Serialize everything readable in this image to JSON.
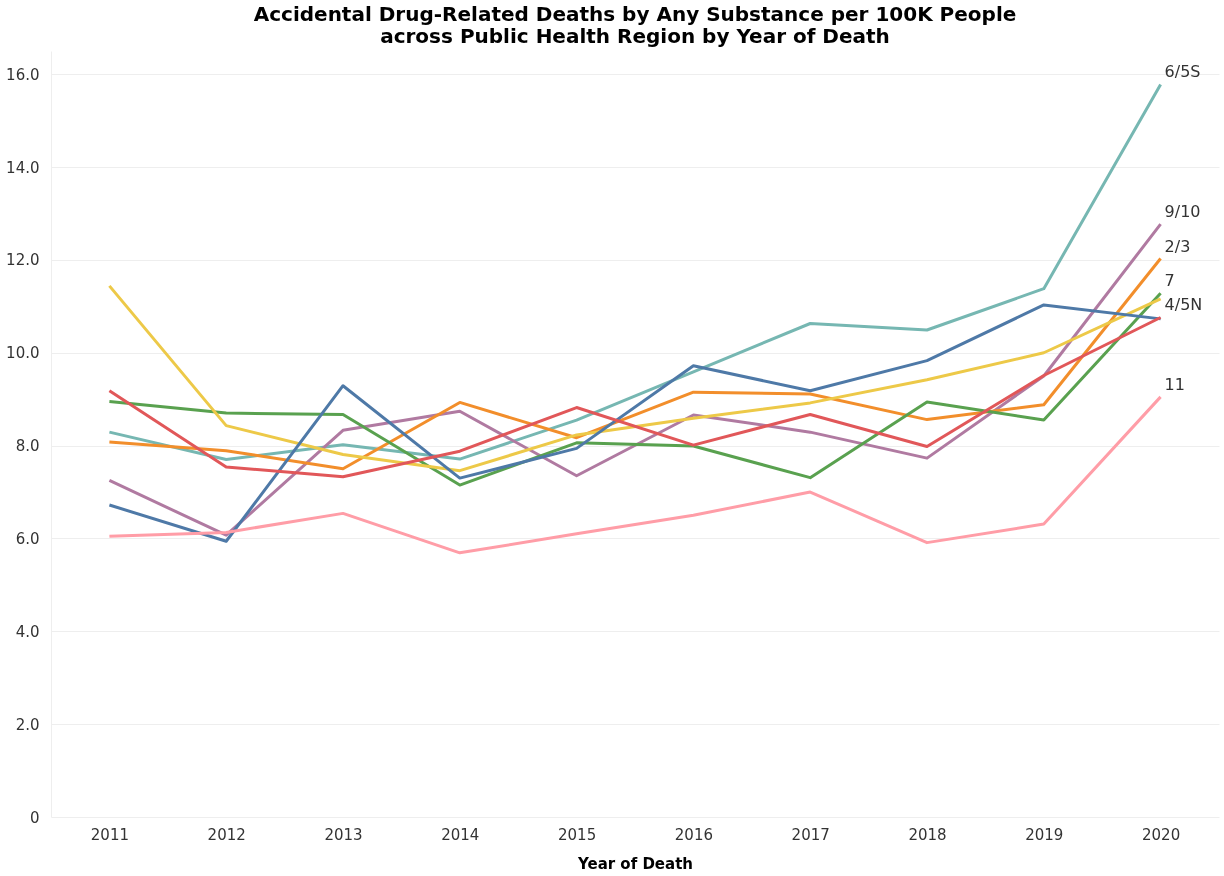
{
  "chart_data": {
    "type": "line",
    "title": [
      "Accidental Drug-Related Deaths by Any Substance per 100K People",
      "across Public Health Region by Year of Death"
    ],
    "xlabel": "Year of Death",
    "categories": [
      "2011",
      "2012",
      "2013",
      "2014",
      "2015",
      "2016",
      "2017",
      "2018",
      "2019",
      "2020"
    ],
    "series": [
      {
        "name": "6/5S",
        "color": "#76b7b2",
        "values": [
          8.29,
          7.7,
          8.02,
          7.71,
          8.55,
          9.59,
          10.63,
          10.49,
          11.38,
          15.78
        ]
      },
      {
        "name": "9/10",
        "color": "#b07aa1",
        "values": [
          7.25,
          6.07,
          8.33,
          8.74,
          7.35,
          8.66,
          8.29,
          7.73,
          9.5,
          12.77
        ]
      },
      {
        "name": "2/3",
        "color": "#f28e2b",
        "values": [
          8.08,
          7.89,
          7.5,
          8.93,
          8.17,
          9.15,
          9.11,
          8.56,
          8.88,
          12.03
        ]
      },
      {
        "name": "7",
        "color": "#59a14f",
        "values": [
          8.95,
          8.7,
          8.67,
          7.15,
          8.06,
          7.99,
          7.31,
          8.94,
          8.55,
          11.28
        ]
      },
      {
        "color": "#edc948",
        "values": [
          11.44,
          8.43,
          7.81,
          7.46,
          8.23,
          8.59,
          8.92,
          9.42,
          10.0,
          11.16
        ]
      },
      {
        "color": "#4e79a7",
        "values": [
          6.72,
          5.94,
          9.29,
          7.3,
          7.94,
          9.72,
          9.18,
          9.83,
          11.03,
          10.73
        ]
      },
      {
        "name": "4/5N",
        "color": "#e15759",
        "values": [
          9.18,
          7.54,
          7.33,
          7.88,
          8.82,
          8.01,
          8.67,
          7.98,
          9.51,
          10.76
        ]
      },
      {
        "name": "11",
        "color": "#ff9da7",
        "values": [
          6.05,
          6.13,
          6.54,
          5.69,
          6.1,
          6.5,
          7.0,
          5.91,
          6.31,
          9.05
        ]
      }
    ],
    "ylim": [
      0,
      16.5
    ],
    "yticks": [
      0,
      {
        "value": 2,
        "label": "2.0"
      },
      {
        "value": 4,
        "label": "4.0"
      },
      {
        "value": 6,
        "label": "6.0"
      },
      {
        "value": 8,
        "label": "8.0"
      },
      {
        "value": 10,
        "label": "10.0"
      },
      {
        "value": 12,
        "label": "12.0"
      },
      {
        "value": 14,
        "label": "14.0"
      },
      {
        "value": 16,
        "label": "16.0"
      }
    ],
    "grid": "y",
    "legend": false,
    "line_style": "solid",
    "marker": "none"
  }
}
